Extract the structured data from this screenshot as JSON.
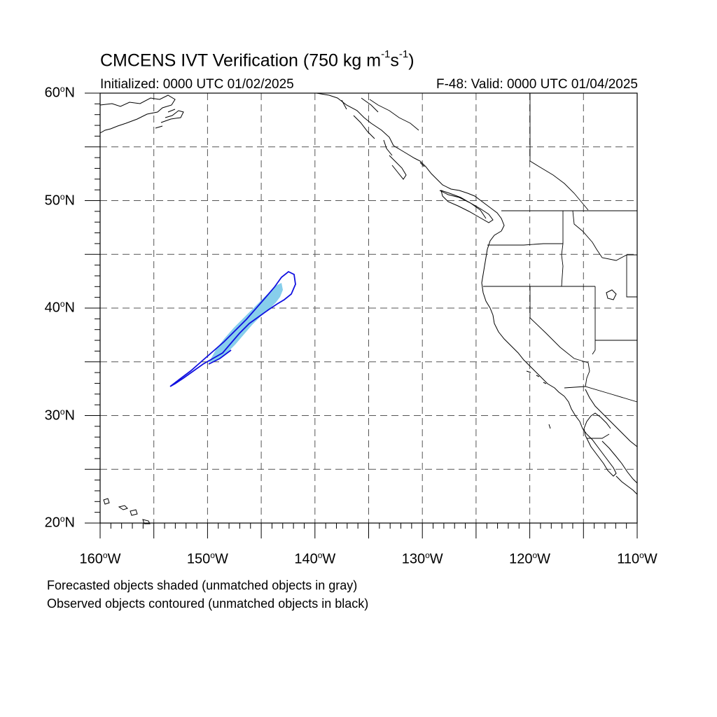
{
  "title": {
    "main": "CMCENS IVT Verification (750 kg m",
    "exp1": "-1",
    "mid": "s",
    "exp2": "-1",
    "end": ")"
  },
  "initialized": "Initialized: 0000 UTC 01/02/2025",
  "valid": "F-48: Valid: 0000 UTC 01/04/2025",
  "lat_labels": [
    {
      "deg": "60",
      "hem": "N"
    },
    {
      "deg": "50",
      "hem": "N"
    },
    {
      "deg": "40",
      "hem": "N"
    },
    {
      "deg": "30",
      "hem": "N"
    },
    {
      "deg": "20",
      "hem": "N"
    }
  ],
  "lon_labels": [
    {
      "deg": "160",
      "hem": "W"
    },
    {
      "deg": "150",
      "hem": "W"
    },
    {
      "deg": "140",
      "hem": "W"
    },
    {
      "deg": "130",
      "hem": "W"
    },
    {
      "deg": "120",
      "hem": "W"
    },
    {
      "deg": "110",
      "hem": "W"
    }
  ],
  "notes": [
    "Forecasted objects shaded (unmatched objects in gray)",
    "Observed objects contoured (unmatched objects in black)"
  ],
  "map": {
    "lon_range": [
      -160,
      -110
    ],
    "lat_range": [
      20,
      60
    ],
    "grid_spacing_deg": 5,
    "projection": "cylindrical equidistant",
    "colors": {
      "forecast_matched_fill": "#87ceeb",
      "observed_matched_contour": "#1010e0",
      "coastline": "#000000",
      "grid": "#555555"
    }
  }
}
